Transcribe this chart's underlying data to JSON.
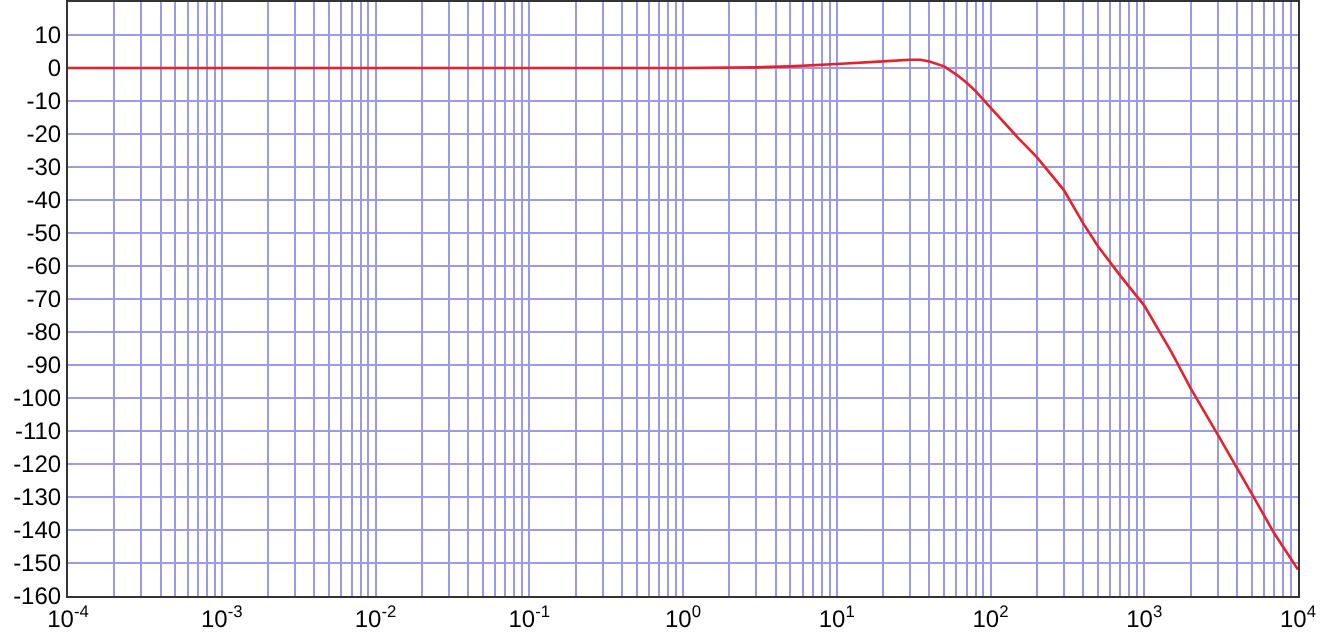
{
  "chart_data": {
    "type": "line",
    "log": "x",
    "grid": true,
    "marker": "none",
    "line_style": "solid",
    "x": [
      0.0001,
      0.01,
      1,
      3,
      5,
      10,
      20,
      30,
      35,
      40,
      50,
      60,
      70,
      80,
      100,
      150,
      200,
      300,
      400,
      500,
      700,
      1000,
      1500,
      2000,
      3000,
      5000,
      7000,
      10000
    ],
    "series": [
      {
        "color": "#e8202a",
        "values": [
          0,
          0,
          0,
          0.2,
          0.5,
          1.2,
          2,
          2.5,
          2.5,
          2,
          0.5,
          -2,
          -4.5,
          -7,
          -12,
          -21,
          -27,
          -37,
          -47,
          -54,
          -63,
          -72,
          -86,
          -97,
          -111,
          -129,
          -141,
          -152
        ]
      }
    ],
    "xlim": [
      0.0001,
      10000
    ],
    "xticks": [
      {
        "value": 0.0001,
        "label": "10$^{-4}$"
      },
      {
        "value": 0.0002,
        "label": null
      },
      {
        "value": 0.0003,
        "label": null
      },
      {
        "value": 0.0004,
        "label": null
      },
      {
        "value": 0.0005,
        "label": null
      },
      {
        "value": 0.0006,
        "label": null
      },
      {
        "value": 0.0007,
        "label": null
      },
      {
        "value": 0.0008,
        "label": null
      },
      {
        "value": 0.0009,
        "label": null
      },
      {
        "value": 0.001,
        "label": "10$^{-3}$"
      },
      {
        "value": 0.002,
        "label": null
      },
      {
        "value": 0.003,
        "label": null
      },
      {
        "value": 0.004,
        "label": null
      },
      {
        "value": 0.005,
        "label": null
      },
      {
        "value": 0.006,
        "label": null
      },
      {
        "value": 0.007,
        "label": null
      },
      {
        "value": 0.008,
        "label": null
      },
      {
        "value": 0.009,
        "label": null
      },
      {
        "value": 0.01,
        "label": "10$^{-2}$"
      },
      {
        "value": 0.02,
        "label": null
      },
      {
        "value": 0.03,
        "label": null
      },
      {
        "value": 0.04,
        "label": null
      },
      {
        "value": 0.05,
        "label": null
      },
      {
        "value": 0.06,
        "label": null
      },
      {
        "value": 0.07,
        "label": null
      },
      {
        "value": 0.08,
        "label": null
      },
      {
        "value": 0.09,
        "label": null
      },
      {
        "value": 0.1,
        "label": "10$^{-1}$"
      },
      {
        "value": 0.2,
        "label": null
      },
      {
        "value": 0.3,
        "label": null
      },
      {
        "value": 0.4,
        "label": null
      },
      {
        "value": 0.5,
        "label": null
      },
      {
        "value": 0.6,
        "label": null
      },
      {
        "value": 0.7,
        "label": null
      },
      {
        "value": 0.8,
        "label": null
      },
      {
        "value": 0.9,
        "label": null
      },
      {
        "value": 1,
        "label": "10$^{0}$"
      },
      {
        "value": 2,
        "label": null
      },
      {
        "value": 3,
        "label": null
      },
      {
        "value": 4,
        "label": null
      },
      {
        "value": 5,
        "label": null
      },
      {
        "value": 6,
        "label": null
      },
      {
        "value": 7,
        "label": null
      },
      {
        "value": 8,
        "label": null
      },
      {
        "value": 9,
        "label": null
      },
      {
        "value": 10,
        "label": "10$^{1}$"
      },
      {
        "value": 20,
        "label": null
      },
      {
        "value": 30,
        "label": null
      },
      {
        "value": 40,
        "label": null
      },
      {
        "value": 50,
        "label": null
      },
      {
        "value": 60,
        "label": null
      },
      {
        "value": 70,
        "label": null
      },
      {
        "value": 80,
        "label": null
      },
      {
        "value": 90,
        "label": null
      },
      {
        "value": 100,
        "label": "10$^{2}$"
      },
      {
        "value": 200,
        "label": null
      },
      {
        "value": 300,
        "label": null
      },
      {
        "value": 400,
        "label": null
      },
      {
        "value": 500,
        "label": null
      },
      {
        "value": 600,
        "label": null
      },
      {
        "value": 700,
        "label": null
      },
      {
        "value": 800,
        "label": null
      },
      {
        "value": 900,
        "label": null
      },
      {
        "value": 1000,
        "label": "10$^{3}$"
      },
      {
        "value": 2000,
        "label": null
      },
      {
        "value": 3000,
        "label": null
      },
      {
        "value": 4000,
        "label": null
      },
      {
        "value": 5000,
        "label": null
      },
      {
        "value": 6000,
        "label": null
      },
      {
        "value": 7000,
        "label": null
      },
      {
        "value": 8000,
        "label": null
      },
      {
        "value": 9000,
        "label": null
      },
      {
        "value": 10000,
        "label": "10$^{4}$"
      }
    ],
    "ylim": [
      -160,
      20
    ],
    "yticks": [
      -160,
      -150,
      -140,
      -130,
      -120,
      -110,
      -100,
      -90,
      -80,
      -70,
      -60,
      -50,
      -40,
      -30,
      -20,
      -10,
      0,
      10
    ]
  }
}
